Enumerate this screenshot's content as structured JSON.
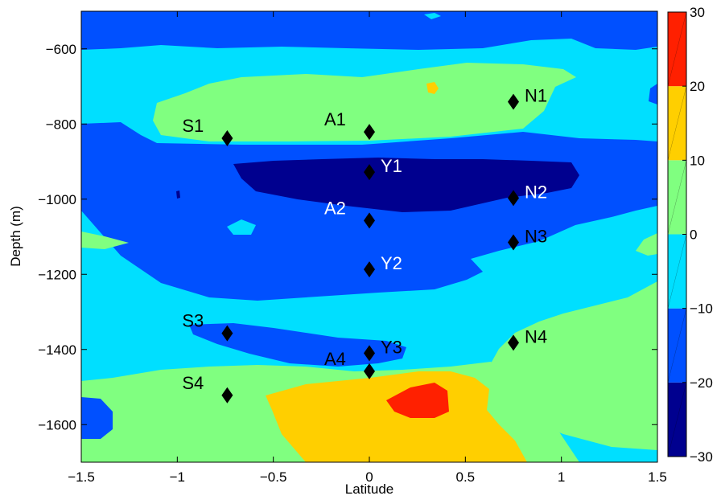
{
  "chart_data": {
    "type": "contour",
    "xlabel": "Latitude",
    "ylabel": "Depth (m)",
    "xlim": [
      -1.5,
      1.5
    ],
    "ylim": [
      -1700,
      -500
    ],
    "xticks": [
      -1.5,
      -1,
      -0.5,
      0,
      0.5,
      1,
      1.5
    ],
    "xtick_labels": [
      "−1.5",
      "−1",
      "−0.5",
      "0",
      "0.5",
      "1",
      "1.5"
    ],
    "yticks": [
      -600,
      -800,
      -1000,
      -1200,
      -1400,
      -1600
    ],
    "ytick_labels": [
      "−600",
      "−800",
      "−1000",
      "−1200",
      "−1400",
      "−1600"
    ],
    "grid": false,
    "colorbar": {
      "position": "right",
      "range": [
        -30,
        30
      ],
      "ticks": [
        30,
        20,
        10,
        0,
        -10,
        -20,
        -30
      ],
      "tick_labels": [
        "30",
        "20",
        "10",
        "0",
        "−10",
        "−20",
        "−30"
      ],
      "levels": [
        {
          "min": -30,
          "max": -20,
          "color": "#00008f"
        },
        {
          "min": -20,
          "max": -10,
          "color": "#0050ff"
        },
        {
          "min": -10,
          "max": 0,
          "color": "#00dfff"
        },
        {
          "min": 0,
          "max": 10,
          "color": "#80ff80"
        },
        {
          "min": 10,
          "max": 20,
          "color": "#ffcf00"
        },
        {
          "min": 20,
          "max": 30,
          "color": "#ff2000"
        }
      ]
    },
    "markers": [
      {
        "label": "S1",
        "x": -0.74,
        "y": -838,
        "label_side": "left",
        "label_color": "#000000"
      },
      {
        "label": "A1",
        "x": 0.0,
        "y": -821,
        "label_side": "left",
        "label_color": "#000000"
      },
      {
        "label": "N1",
        "x": 0.75,
        "y": -741,
        "label_side": "right",
        "label_color": "#000000"
      },
      {
        "label": "Y1",
        "x": 0.0,
        "y": -928,
        "label_side": "right",
        "label_color": "#ffffff"
      },
      {
        "label": "N2",
        "x": 0.75,
        "y": -997,
        "label_side": "right",
        "label_color": "#ffffff"
      },
      {
        "label": "A2",
        "x": 0.0,
        "y": -1057,
        "label_side": "left",
        "label_color": "#ffffff"
      },
      {
        "label": "N3",
        "x": 0.75,
        "y": -1115,
        "label_side": "right",
        "label_color": "#000000"
      },
      {
        "label": "Y2",
        "x": 0.0,
        "y": -1187,
        "label_side": "right",
        "label_color": "#ffffff"
      },
      {
        "label": "S3",
        "x": -0.74,
        "y": -1357,
        "label_side": "left",
        "label_color": "#000000"
      },
      {
        "label": "N4",
        "x": 0.75,
        "y": -1382,
        "label_side": "right",
        "label_color": "#000000"
      },
      {
        "label": "Y3",
        "x": 0.0,
        "y": -1410,
        "label_side": "right",
        "label_color": "#000000"
      },
      {
        "label": "A4",
        "x": 0.0,
        "y": -1458,
        "label_side": "left",
        "label_color": "#000000"
      },
      {
        "label": "S4",
        "x": -0.74,
        "y": -1522,
        "label_side": "left",
        "label_color": "#000000"
      }
    ]
  }
}
